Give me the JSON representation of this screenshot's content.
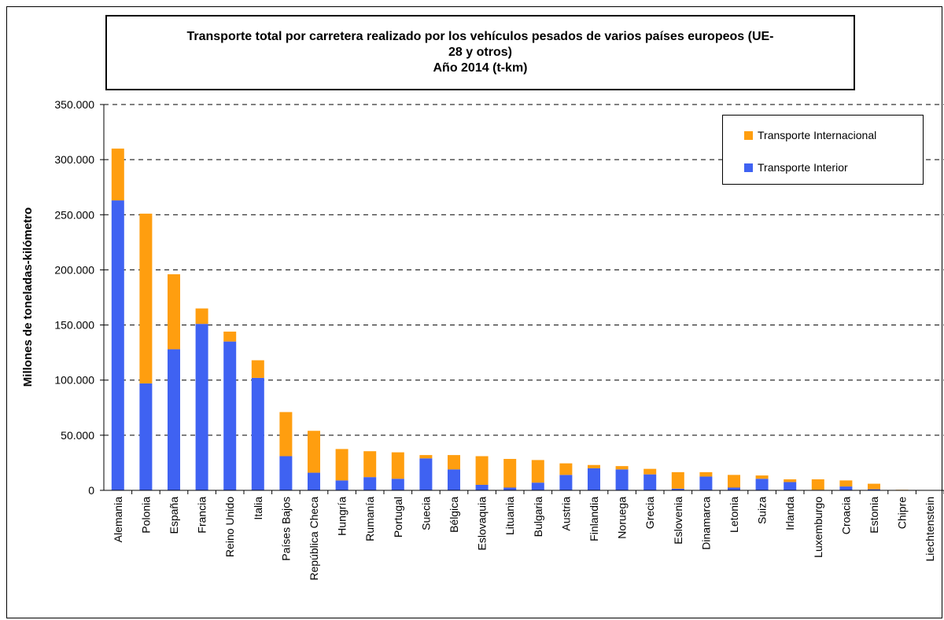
{
  "colors": {
    "interior": "#3f62f2",
    "internacional": "#ff9e0f",
    "grid": "#000000"
  },
  "chart_data": {
    "type": "bar",
    "stacked": true,
    "title_lines": [
      "Transporte total por carretera realizado por los vehículos pesados de varios países europeos (UE-",
      "28 y otros)",
      "Año 2014 (t-km)"
    ],
    "xlabel": "",
    "ylabel": "Millones de toneladas-kilómetro",
    "ylim": [
      0,
      350000
    ],
    "yticks": [
      0,
      50000,
      100000,
      150000,
      200000,
      250000,
      300000,
      350000
    ],
    "ytick_labels": [
      "0",
      "50.000",
      "100.000",
      "150.000",
      "200.000",
      "250.000",
      "300.000",
      "350.000"
    ],
    "grid": "horizontal dashed",
    "legend_position": "top-right",
    "categories": [
      "Alemania",
      "Polonia",
      "España",
      "Francia",
      "Reino Unido",
      "Italia",
      "Países Bajos",
      "República Checa",
      "Hungría",
      "Rumanía",
      "Portugal",
      "Suecia",
      "Bélgica",
      "Eslovaquia",
      "Lituania",
      "Bulgaria",
      "Austria",
      "Finlandia",
      "Noruega",
      "Grecia",
      "Eslovenia",
      "Dinamarca",
      "Letonia",
      "Suiza",
      "Irlanda",
      "Luxemburgo",
      "Croacia",
      "Estonia",
      "Chipre",
      "Liechtenstein"
    ],
    "series": [
      {
        "name": "Transporte Interior",
        "values": [
          263000,
          97000,
          128000,
          151000,
          135000,
          102000,
          31000,
          16000,
          9000,
          12000,
          10500,
          29000,
          19000,
          5000,
          2500,
          7000,
          14000,
          20000,
          19000,
          14500,
          1500,
          12500,
          2500,
          10500,
          7500,
          500,
          3500,
          1000,
          300,
          200
        ]
      },
      {
        "name": "Transporte Internacional",
        "values": [
          47000,
          154000,
          68000,
          14000,
          9000,
          16000,
          40000,
          38000,
          28500,
          23500,
          24000,
          3000,
          13000,
          26000,
          26000,
          20500,
          10500,
          3000,
          3000,
          5000,
          15000,
          4000,
          11500,
          3000,
          2500,
          9500,
          5500,
          5000,
          200,
          100
        ]
      }
    ]
  }
}
